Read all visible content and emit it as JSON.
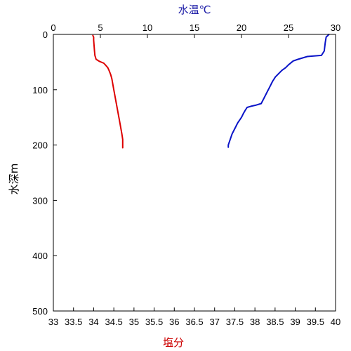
{
  "chart_data": {
    "type": "line",
    "title": "",
    "top_axis": {
      "label": "水温℃",
      "label_color": "#1a1aa6",
      "range": [
        0,
        30
      ],
      "ticks": [
        0,
        5,
        10,
        15,
        20,
        25,
        30
      ]
    },
    "bottom_axis": {
      "label": "塩分",
      "label_color": "#cc0000",
      "range": [
        33,
        40
      ],
      "ticks": [
        "33",
        "33.5",
        "34",
        "34.5",
        "35",
        "35.5",
        "36",
        "36.5",
        "37",
        "37.5",
        "38",
        "38.5",
        "39",
        "39.5",
        "40"
      ]
    },
    "y_axis": {
      "label": "水深m",
      "range": [
        0,
        500
      ],
      "inverted": true,
      "ticks": [
        0,
        100,
        200,
        300,
        400,
        500
      ]
    },
    "grid": false,
    "series": [
      {
        "axis": "bottom",
        "color": "#dd0000",
        "points": [
          [
            33.98,
            2
          ],
          [
            34.0,
            5
          ],
          [
            34.0,
            10
          ],
          [
            34.01,
            20
          ],
          [
            34.02,
            30
          ],
          [
            34.03,
            38
          ],
          [
            34.06,
            45
          ],
          [
            34.15,
            49
          ],
          [
            34.25,
            52
          ],
          [
            34.3,
            56
          ],
          [
            34.35,
            60
          ],
          [
            34.38,
            65
          ],
          [
            34.42,
            72
          ],
          [
            34.45,
            80
          ],
          [
            34.5,
            100
          ],
          [
            34.55,
            120
          ],
          [
            34.6,
            140
          ],
          [
            34.65,
            160
          ],
          [
            34.7,
            180
          ],
          [
            34.72,
            190
          ],
          [
            34.72,
            205
          ]
        ]
      },
      {
        "axis": "top",
        "color": "#0a14c8",
        "points": [
          [
            29.3,
            0
          ],
          [
            29.0,
            5
          ],
          [
            28.9,
            15
          ],
          [
            28.8,
            30
          ],
          [
            28.5,
            38
          ],
          [
            27.0,
            40
          ],
          [
            26.0,
            45
          ],
          [
            25.5,
            48
          ],
          [
            25.0,
            55
          ],
          [
            24.7,
            60
          ],
          [
            24.3,
            65
          ],
          [
            24.0,
            70
          ],
          [
            23.6,
            77
          ],
          [
            23.3,
            85
          ],
          [
            23.0,
            95
          ],
          [
            22.7,
            105
          ],
          [
            22.4,
            115
          ],
          [
            22.1,
            125
          ],
          [
            21.5,
            128
          ],
          [
            21.0,
            130
          ],
          [
            20.6,
            132
          ],
          [
            20.4,
            137
          ],
          [
            20.2,
            143
          ],
          [
            20.0,
            150
          ],
          [
            19.6,
            160
          ],
          [
            19.3,
            170
          ],
          [
            19.0,
            180
          ],
          [
            18.8,
            190
          ],
          [
            18.6,
            200
          ],
          [
            18.6,
            204
          ]
        ]
      }
    ]
  }
}
